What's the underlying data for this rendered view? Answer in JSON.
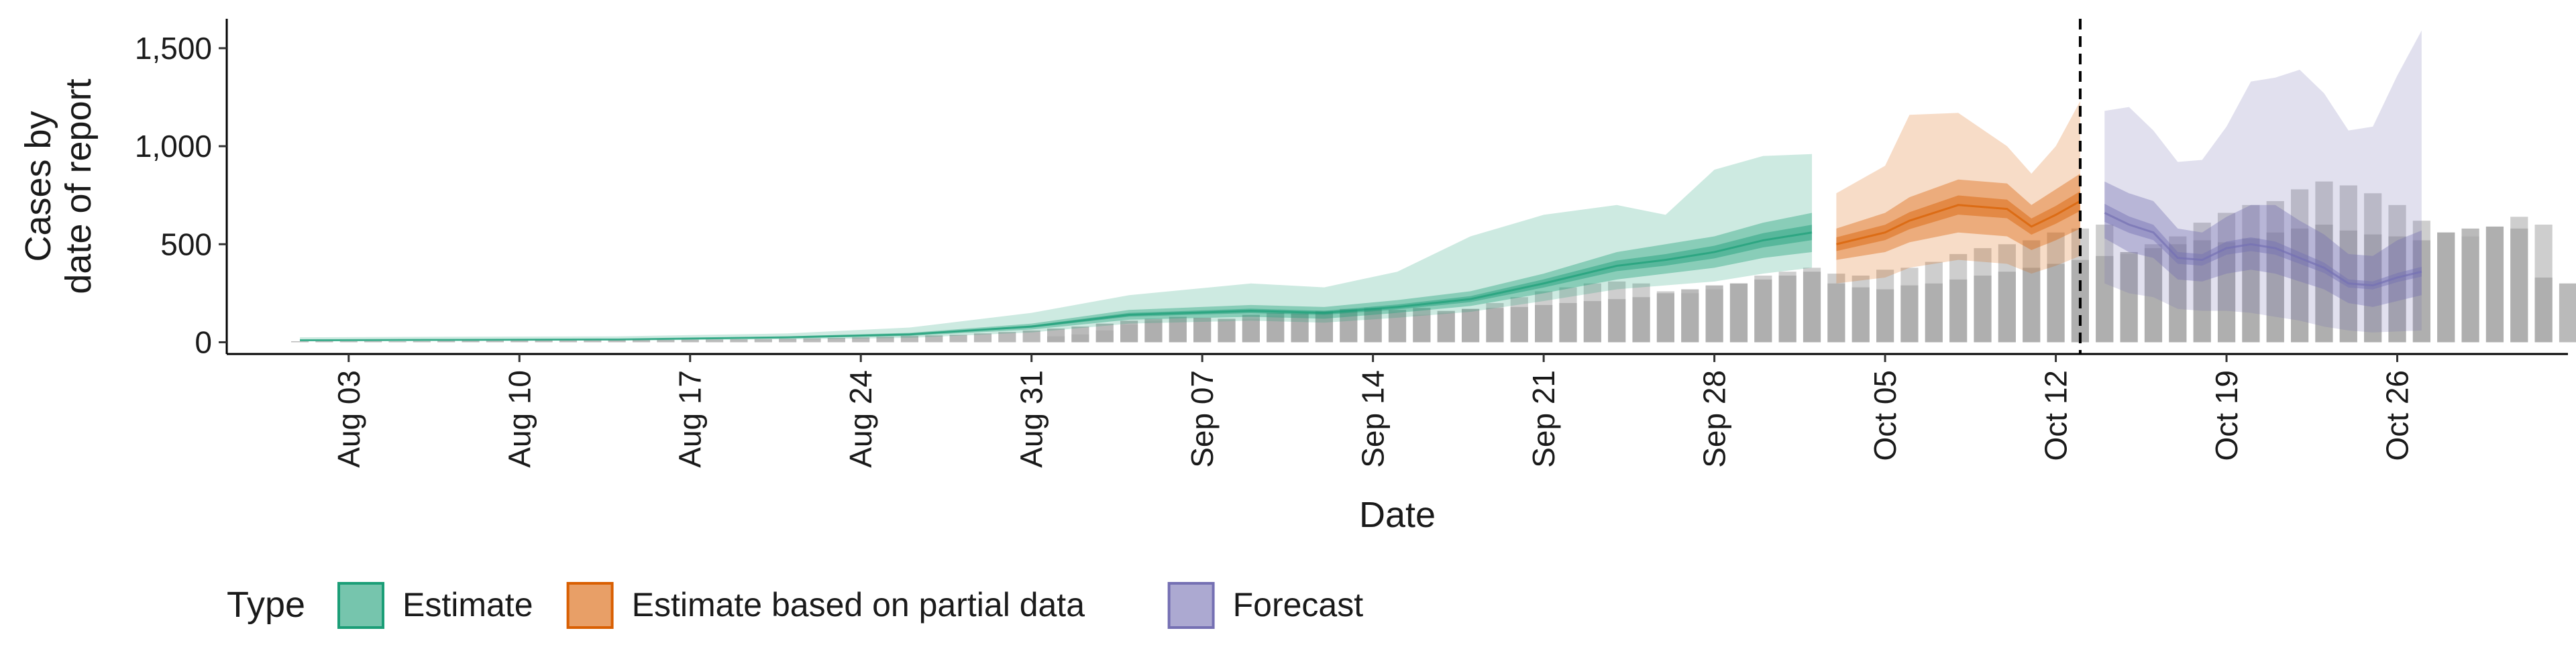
{
  "chart_data": {
    "type": "bar+area",
    "xlabel": "Date",
    "ylabel_lines": [
      "Cases by",
      "date of report"
    ],
    "x_range": [
      "2020-07-29",
      "2020-11-02"
    ],
    "ylim": [
      -60,
      1650
    ],
    "yticks": [
      0,
      500,
      1000,
      1500
    ],
    "ytick_labels": [
      "0",
      "500",
      "1,000",
      "1,500"
    ],
    "xticks": [
      "2020-08-03",
      "2020-08-10",
      "2020-08-17",
      "2020-08-24",
      "2020-08-31",
      "2020-09-07",
      "2020-09-14",
      "2020-09-21",
      "2020-09-28",
      "2020-10-05",
      "2020-10-12",
      "2020-10-19",
      "2020-10-26"
    ],
    "xtick_labels": [
      "Aug 03",
      "Aug 10",
      "Aug 17",
      "Aug 24",
      "Aug 31",
      "Sep 07",
      "Sep 14",
      "Sep 21",
      "Sep 28",
      "Oct 05",
      "Oct 12",
      "Oct 19",
      "Oct 26"
    ],
    "vline_date": "2020-10-13",
    "legend": {
      "title": "Type",
      "position": "bottom",
      "items": [
        {
          "label": "Estimate",
          "color": "#1b9e77"
        },
        {
          "label": "Estimate based on partial data",
          "color": "#d95f02"
        },
        {
          "label": "Forecast",
          "color": "#7570b3"
        }
      ]
    },
    "bars": {
      "color": "#a6a6a6",
      "start_date": "2020-08-01",
      "values": [
        5,
        6,
        5,
        6,
        5,
        6,
        7,
        8,
        8,
        9,
        10,
        9,
        10,
        11,
        12,
        12,
        13,
        14,
        15,
        16,
        18,
        20,
        22,
        25,
        28,
        32,
        35,
        38,
        45,
        52,
        60,
        70,
        80,
        95,
        110,
        120,
        130,
        125,
        120,
        140,
        150,
        145,
        155,
        165,
        170,
        165,
        175,
        160,
        170,
        175,
        180,
        190,
        200,
        210,
        220,
        230,
        250,
        270,
        290,
        300,
        320,
        340,
        360,
        300,
        280,
        270,
        290,
        300,
        320,
        340,
        360,
        380,
        400,
        420,
        440,
        460,
        480,
        500,
        520,
        510,
        530,
        560,
        580,
        600,
        570,
        550,
        540,
        520,
        560,
        580,
        590,
        580,
        330,
        300
      ],
      "overlay_start_date": "2020-09-01",
      "overlay_values": [
        30,
        40,
        60,
        90,
        110,
        120,
        125,
        110,
        120,
        130,
        150,
        160,
        170,
        175,
        150,
        140,
        150,
        170,
        200,
        230,
        260,
        280,
        300,
        310,
        300,
        260,
        250,
        270,
        300,
        340,
        360,
        380,
        350,
        340,
        370,
        380,
        410,
        450,
        480,
        500,
        520,
        560,
        580,
        600,
        450,
        500,
        540,
        610,
        660,
        700,
        720,
        780,
        820,
        800,
        760,
        700,
        620,
        560,
        540,
        590,
        640,
        600
      ]
    },
    "estimate": {
      "color": "#1b9e77",
      "dates": [
        "2020-08-01",
        "2020-08-07",
        "2020-08-14",
        "2020-08-21",
        "2020-08-26",
        "2020-08-31",
        "2020-09-04",
        "2020-09-09",
        "2020-09-12",
        "2020-09-15",
        "2020-09-18",
        "2020-09-21",
        "2020-09-24",
        "2020-09-26",
        "2020-09-28",
        "2020-09-30",
        "2020-10-02"
      ],
      "median": [
        10,
        12,
        14,
        25,
        40,
        80,
        140,
        160,
        150,
        180,
        220,
        300,
        390,
        420,
        460,
        520,
        560
      ],
      "inner_lo": [
        7,
        9,
        11,
        20,
        32,
        65,
        115,
        130,
        120,
        150,
        185,
        250,
        320,
        350,
        380,
        430,
        460
      ],
      "inner_hi": [
        13,
        15,
        17,
        30,
        48,
        95,
        165,
        190,
        180,
        215,
        260,
        350,
        460,
        500,
        540,
        610,
        660
      ],
      "outer_lo": [
        5,
        7,
        9,
        15,
        22,
        50,
        95,
        110,
        100,
        125,
        155,
        210,
        270,
        290,
        310,
        350,
        380
      ],
      "outer_hi": [
        25,
        28,
        30,
        45,
        75,
        150,
        240,
        300,
        280,
        360,
        540,
        650,
        700,
        650,
        880,
        950,
        960
      ]
    },
    "partial": {
      "color": "#d95f02",
      "dates": [
        "2020-10-03",
        "2020-10-05",
        "2020-10-06",
        "2020-10-08",
        "2020-10-10",
        "2020-10-11",
        "2020-10-12",
        "2020-10-13"
      ],
      "median": [
        500,
        560,
        620,
        700,
        680,
        590,
        650,
        720
      ],
      "inner_lo": [
        420,
        460,
        510,
        560,
        540,
        470,
        520,
        580
      ],
      "inner_hi": [
        580,
        660,
        740,
        830,
        810,
        700,
        780,
        860
      ],
      "outer_lo": [
        300,
        330,
        380,
        420,
        400,
        350,
        390,
        440
      ],
      "outer_hi": [
        760,
        900,
        1160,
        1170,
        1000,
        860,
        1000,
        1230
      ]
    },
    "forecast": {
      "color": "#7570b3",
      "dates": [
        "2020-10-14",
        "2020-10-15",
        "2020-10-16",
        "2020-10-17",
        "2020-10-18",
        "2020-10-19",
        "2020-10-20",
        "2020-10-21",
        "2020-10-22",
        "2020-10-23",
        "2020-10-24",
        "2020-10-25",
        "2020-10-26",
        "2020-10-27"
      ],
      "median": [
        660,
        600,
        560,
        430,
        420,
        480,
        500,
        480,
        430,
        380,
        300,
        290,
        330,
        360
      ],
      "inner_lo": [
        530,
        460,
        430,
        320,
        310,
        350,
        370,
        350,
        310,
        270,
        200,
        180,
        210,
        240
      ],
      "inner_hi": [
        820,
        760,
        720,
        580,
        560,
        640,
        700,
        700,
        620,
        550,
        450,
        440,
        520,
        570
      ],
      "outer_lo": [
        300,
        250,
        230,
        170,
        160,
        160,
        150,
        130,
        110,
        80,
        60,
        50,
        55,
        60
      ],
      "outer_hi": [
        1180,
        1200,
        1080,
        920,
        930,
        1100,
        1330,
        1350,
        1390,
        1270,
        1080,
        1100,
        1360,
        1590
      ]
    }
  }
}
